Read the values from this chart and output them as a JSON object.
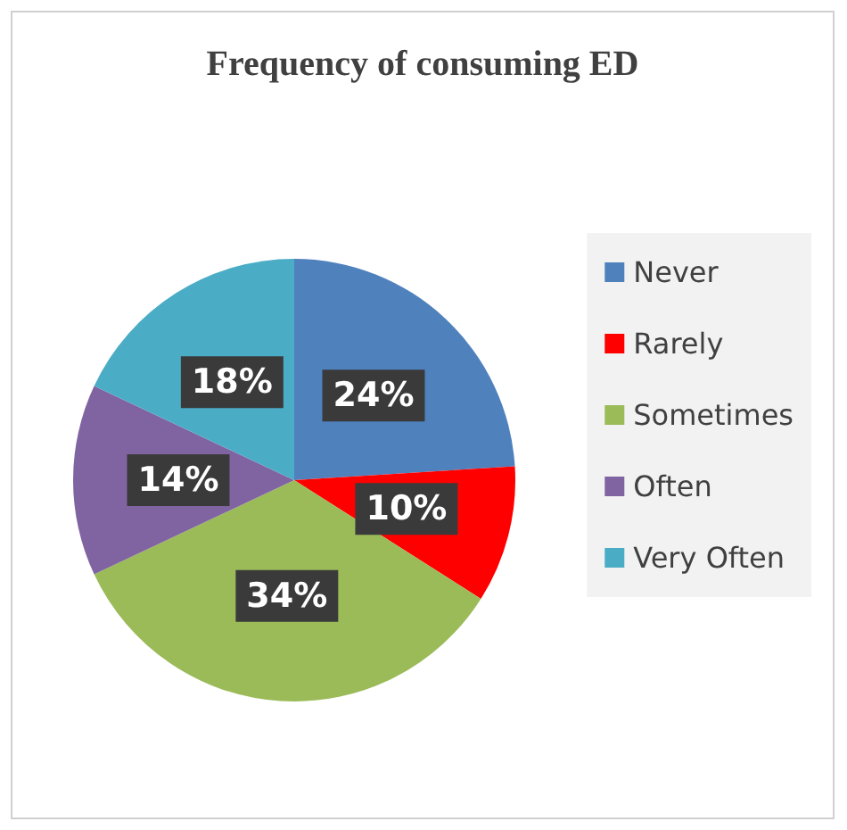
{
  "chart_data": {
    "type": "pie",
    "title": "Frequency of consuming ED",
    "categories": [
      "Never",
      "Rarely",
      "Sometimes",
      "Often",
      "Very Often"
    ],
    "values": [
      24,
      10,
      34,
      14,
      18
    ],
    "colors": [
      "#4f81bd",
      "#ff0000",
      "#9bbb59",
      "#8064a2",
      "#4bacc6"
    ],
    "value_labels": [
      "24%",
      "10%",
      "34%",
      "14%",
      "18%"
    ],
    "legend": "right"
  }
}
